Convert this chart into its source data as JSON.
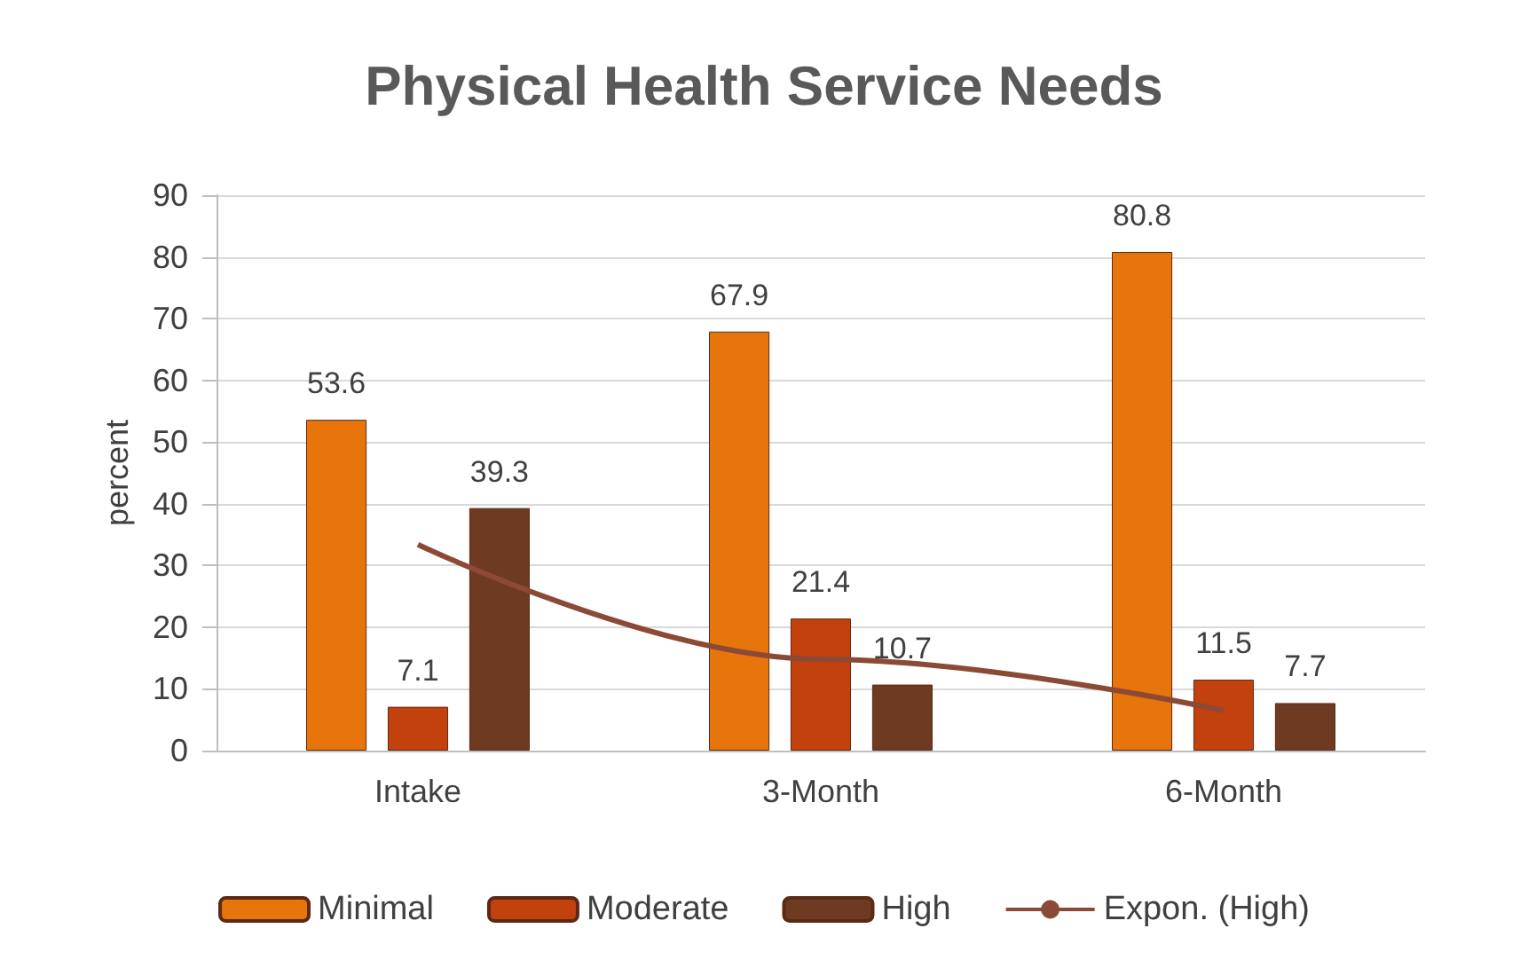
{
  "chart_data": {
    "type": "bar",
    "title": "Physical Health Service Needs",
    "ylabel": "percent",
    "categories": [
      "Intake",
      "3-Month",
      "6-Month"
    ],
    "series": [
      {
        "name": "Minimal",
        "color": "#e8740c",
        "values": [
          53.6,
          67.9,
          80.8
        ],
        "value_labels": [
          "53.6",
          "67.9",
          "80.8"
        ]
      },
      {
        "name": "Moderate",
        "color": "#c2410c",
        "values": [
          7.1,
          21.4,
          11.5
        ],
        "value_labels": [
          "7.1",
          "21.4",
          "11.5"
        ]
      },
      {
        "name": "High",
        "color": "#6e3a22",
        "values": [
          39.3,
          10.7,
          7.7
        ],
        "value_labels": [
          "39.3",
          "10.7",
          "7.7"
        ]
      },
      {
        "name": "Expon. (High)",
        "type": "line",
        "color": "#8c4a36",
        "x": [
          "Intake",
          "3-Month",
          "6-Month"
        ],
        "values": [
          33.4,
          14.8,
          6.5
        ]
      }
    ],
    "ylim": [
      0,
      90
    ],
    "yticks": [
      0,
      10,
      20,
      30,
      40,
      50,
      60,
      70,
      80,
      90
    ],
    "grid": "y",
    "legend": "bottom",
    "marker": "none"
  }
}
